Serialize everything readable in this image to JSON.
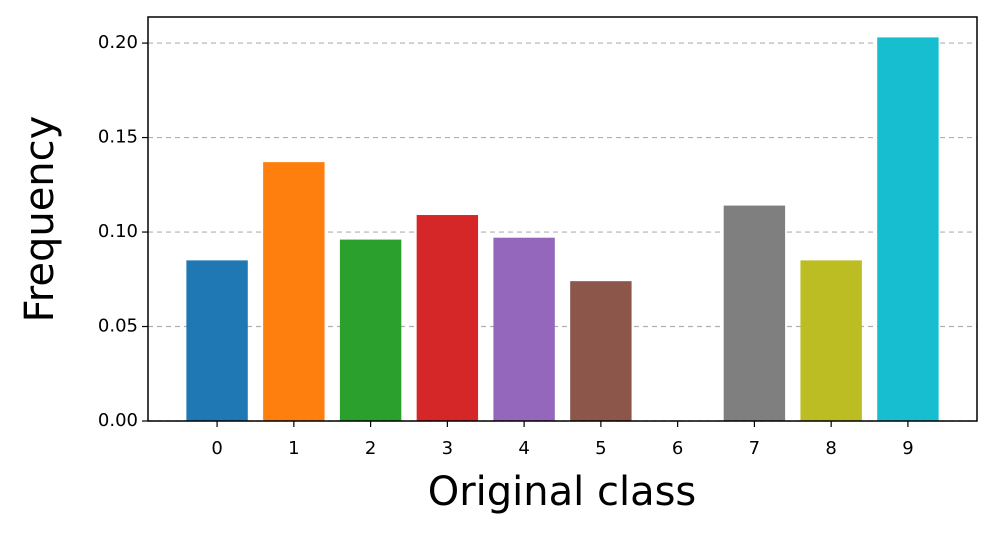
{
  "chart_data": {
    "type": "bar",
    "xlabel": "Original class",
    "ylabel": "Frequency",
    "categories": [
      "0",
      "1",
      "2",
      "3",
      "4",
      "5",
      "6",
      "7",
      "8",
      "9"
    ],
    "values": [
      0.085,
      0.137,
      0.096,
      0.109,
      0.097,
      0.074,
      0,
      0.114,
      0.085,
      0.203
    ],
    "colors": [
      "#1f77b4",
      "#ff7f0e",
      "#2ca02c",
      "#d62728",
      "#9467bd",
      "#8c564b",
      "#e377c2",
      "#7f7f7f",
      "#bcbd22",
      "#17becf"
    ],
    "ylim": [
      0,
      0.2138
    ],
    "yticks": [
      {
        "value": 0,
        "label": "0.00"
      },
      {
        "value": 0.05,
        "label": "0.05"
      },
      {
        "value": 0.1,
        "label": "0.10"
      },
      {
        "value": 0.15,
        "label": "0.15"
      },
      {
        "value": 0.2,
        "label": "0.20"
      }
    ],
    "grid": true
  }
}
